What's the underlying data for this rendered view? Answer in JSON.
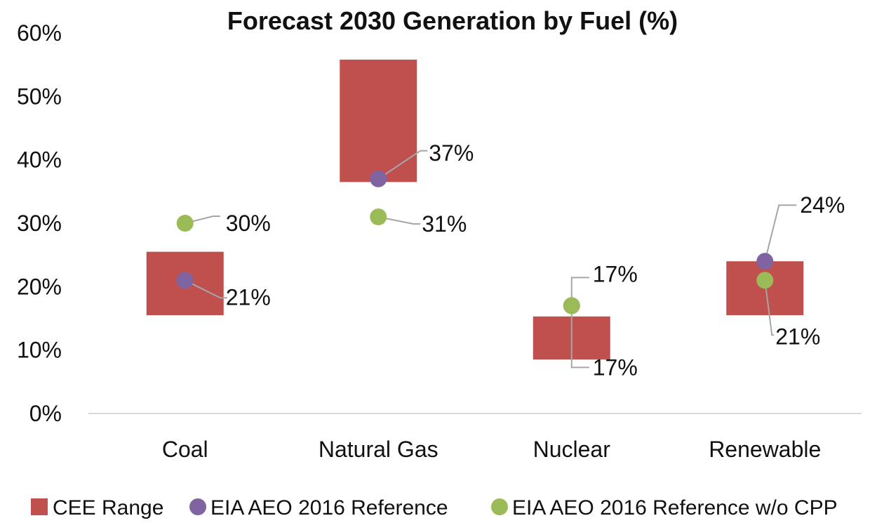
{
  "chart_data": {
    "type": "floating-bar-with-markers",
    "title": "Forecast 2030 Generation by Fuel (%)",
    "xlabel": "",
    "ylabel": "",
    "ylim": [
      0,
      60
    ],
    "yticks": [
      0,
      10,
      20,
      30,
      40,
      50,
      60
    ],
    "ytick_labels": [
      "0%",
      "10%",
      "20%",
      "30%",
      "40%",
      "50%",
      "60%"
    ],
    "grid": false,
    "legend_position": "bottom",
    "categories": [
      "Coal",
      "Natural Gas",
      "Nuclear",
      "Renewable"
    ],
    "range_series": {
      "name": "CEE Range",
      "color": "#c0504d",
      "low": [
        15.5,
        36.5,
        8.5,
        15.5
      ],
      "high": [
        25.5,
        55.8,
        15.3,
        24.0
      ]
    },
    "series": [
      {
        "name": "EIA AEO 2016 Reference",
        "color": "#8064a2",
        "values": [
          21,
          37,
          17,
          24
        ],
        "labels": [
          "21%",
          "37%",
          "17%",
          "24%"
        ]
      },
      {
        "name": "EIA AEO 2016 Reference w/o CPP",
        "color": "#9bbb59",
        "values": [
          30,
          31,
          17,
          21
        ],
        "labels": [
          "30%",
          "31%",
          "17%",
          "21%"
        ]
      }
    ]
  }
}
